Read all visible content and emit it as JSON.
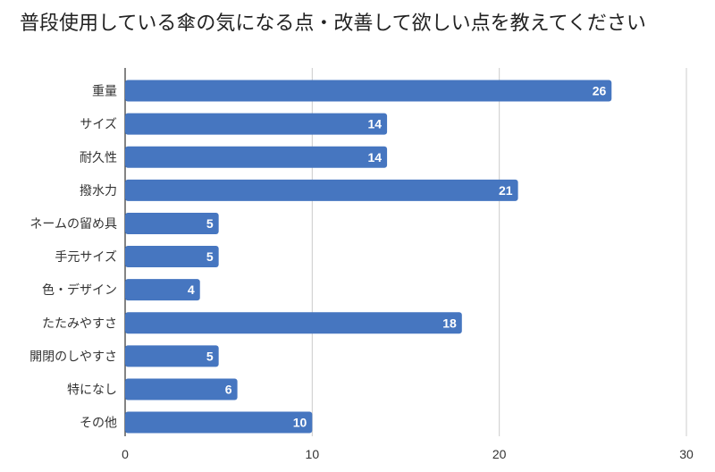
{
  "chart_data": {
    "type": "bar",
    "orientation": "horizontal",
    "title": "普段使用している傘の気になる点・改善して欲しい点を教えてください",
    "categories": [
      "重量",
      "サイズ",
      "耐久性",
      "撥水力",
      "ネームの留め具",
      "手元サイズ",
      "色・デザイン",
      "たたみやすさ",
      "開閉のしやすさ",
      "特になし",
      "その他"
    ],
    "values": [
      26,
      14,
      14,
      21,
      5,
      5,
      4,
      18,
      5,
      6,
      10
    ],
    "xlim": [
      0,
      30
    ],
    "xticks": [
      0,
      10,
      20,
      30
    ],
    "grid": true,
    "bar_color": "#4676c0"
  }
}
